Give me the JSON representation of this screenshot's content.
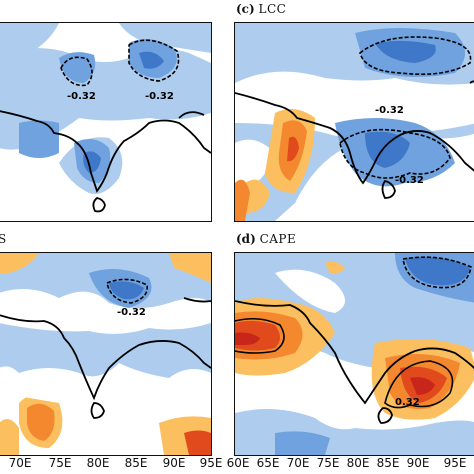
{
  "panels": [
    {
      "id": "a",
      "title_letter": "",
      "title_name": ""
    },
    {
      "id": "c",
      "title_letter": "(c)",
      "title_name": "LCC"
    },
    {
      "id": "b",
      "title_letter": "",
      "title_name": "S"
    },
    {
      "id": "d",
      "title_letter": "(d)",
      "title_name": "CAPE"
    }
  ],
  "contour_label": "-0.32",
  "contour_label_short": "0.32",
  "x_ticks_left": [
    "70E",
    "75E",
    "80E",
    "85E",
    "90E"
  ],
  "x_ticks_right": [
    "95E",
    "60E",
    "65E",
    "70E",
    "75E",
    "80E",
    "85E",
    "90E",
    "95E"
  ],
  "colors": {
    "light_blue": "#aecdee",
    "mid_blue": "#6fa2de",
    "dark_blue": "#3f78c8",
    "light_orange": "#fbbf5f",
    "mid_orange": "#f4882f",
    "dark_orange": "#e04a1c",
    "red": "#c8261a"
  }
}
